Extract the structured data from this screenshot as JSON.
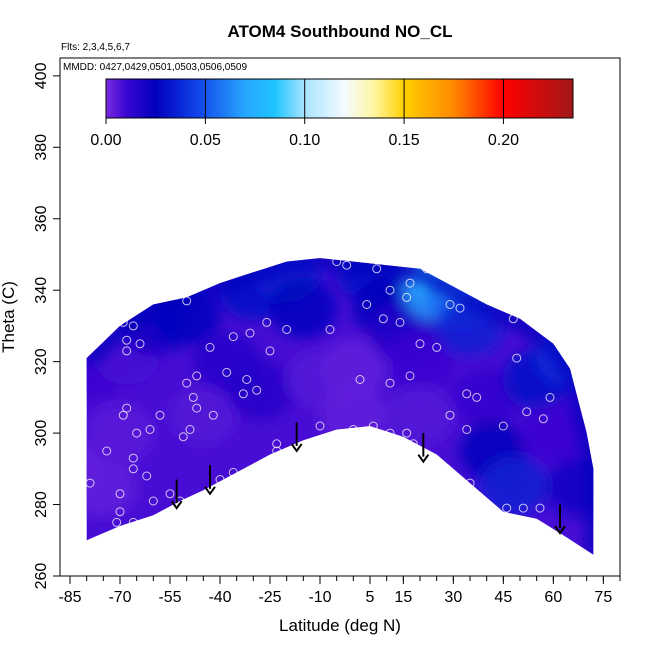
{
  "chart_data": {
    "type": "heatmap",
    "title": "ATOM4 Southbound NO_CL",
    "flights_note": "Flts: 2,3,4,5,6,7",
    "dates_note": "MMDD: 0427,0429,0501,0503,0506,0509",
    "xlabel": "Latitude (deg N)",
    "ylabel": "Theta (C)",
    "xlim": [
      -88,
      80
    ],
    "ylim": [
      260,
      405
    ],
    "x_ticks": [
      -85,
      -70,
      -55,
      -40,
      -25,
      -10,
      5,
      15,
      30,
      45,
      60,
      75
    ],
    "x_minor_ticks": [
      -85,
      -80,
      -75,
      -70,
      -65,
      -60,
      -55,
      -50,
      -45,
      -40,
      -35,
      -30,
      -25,
      -20,
      -15,
      -10,
      -5,
      0,
      5,
      10,
      15,
      20,
      25,
      30,
      35,
      40,
      45,
      50,
      55,
      60,
      65,
      70,
      75,
      80
    ],
    "y_ticks": [
      260,
      280,
      300,
      320,
      340,
      360,
      380,
      400
    ],
    "colorbar": {
      "range": [
        0,
        0.235
      ],
      "ticks": [
        "0.00",
        "0.05",
        "0.10",
        "0.15",
        "0.20"
      ],
      "tick_values": [
        0,
        0.05,
        0.1,
        0.15,
        0.2
      ],
      "stops": [
        {
          "v": 0.0,
          "color": "#7a2be2"
        },
        {
          "v": 0.01,
          "color": "#3a06d0"
        },
        {
          "v": 0.025,
          "color": "#0000bb"
        },
        {
          "v": 0.045,
          "color": "#1040e8"
        },
        {
          "v": 0.07,
          "color": "#27a6ff"
        },
        {
          "v": 0.085,
          "color": "#1ec4ff"
        },
        {
          "v": 0.1,
          "color": "#a8e4ff"
        },
        {
          "v": 0.12,
          "color": "#f4fbff"
        },
        {
          "v": 0.135,
          "color": "#fff6a0"
        },
        {
          "v": 0.15,
          "color": "#ffd000"
        },
        {
          "v": 0.175,
          "color": "#ff8800"
        },
        {
          "v": 0.2,
          "color": "#ff0000"
        },
        {
          "v": 0.235,
          "color": "#a01818"
        }
      ]
    },
    "domain_top": [
      [
        -80,
        321
      ],
      [
        -70,
        330
      ],
      [
        -60,
        336
      ],
      [
        -50,
        338
      ],
      [
        -40,
        342
      ],
      [
        -30,
        345
      ],
      [
        -20,
        348
      ],
      [
        -10,
        349
      ],
      [
        0,
        348
      ],
      [
        10,
        347
      ],
      [
        20,
        346
      ],
      [
        30,
        341
      ],
      [
        40,
        336
      ],
      [
        50,
        332
      ],
      [
        60,
        325
      ],
      [
        65,
        318
      ],
      [
        70,
        300
      ],
      [
        72,
        290
      ],
      [
        72,
        266
      ]
    ],
    "domain_bottom": [
      [
        -80,
        270
      ],
      [
        -70,
        274
      ],
      [
        -60,
        277
      ],
      [
        -52,
        281
      ],
      [
        -45,
        284
      ],
      [
        -35,
        289
      ],
      [
        -25,
        294
      ],
      [
        -15,
        298
      ],
      [
        -5,
        301
      ],
      [
        5,
        302
      ],
      [
        15,
        299
      ],
      [
        25,
        294
      ],
      [
        35,
        286
      ],
      [
        45,
        278
      ],
      [
        55,
        276
      ],
      [
        62,
        272
      ],
      [
        72,
        266
      ]
    ],
    "value_field": [
      {
        "lat": -85,
        "theta": 290,
        "v": 0.004
      },
      {
        "lat": -75,
        "theta": 285,
        "v": 0.004
      },
      {
        "lat": -70,
        "theta": 300,
        "v": 0.005
      },
      {
        "lat": -78,
        "theta": 318,
        "v": 0.01
      },
      {
        "lat": -68,
        "theta": 322,
        "v": 0.008
      },
      {
        "lat": -60,
        "theta": 330,
        "v": 0.02
      },
      {
        "lat": -50,
        "theta": 333,
        "v": 0.026
      },
      {
        "lat": -45,
        "theta": 305,
        "v": 0.006
      },
      {
        "lat": -38,
        "theta": 320,
        "v": 0.015
      },
      {
        "lat": -30,
        "theta": 340,
        "v": 0.03
      },
      {
        "lat": -20,
        "theta": 345,
        "v": 0.035
      },
      {
        "lat": -15,
        "theta": 335,
        "v": 0.026
      },
      {
        "lat": -28,
        "theta": 312,
        "v": 0.016
      },
      {
        "lat": -10,
        "theta": 315,
        "v": 0.006
      },
      {
        "lat": 0,
        "theta": 318,
        "v": 0.004
      },
      {
        "lat": 5,
        "theta": 345,
        "v": 0.03
      },
      {
        "lat": 10,
        "theta": 335,
        "v": 0.025
      },
      {
        "lat": 15,
        "theta": 328,
        "v": 0.016
      },
      {
        "lat": 20,
        "theta": 320,
        "v": 0.01
      },
      {
        "lat": 25,
        "theta": 340,
        "v": 0.07
      },
      {
        "lat": 28,
        "theta": 345,
        "v": 0.08
      },
      {
        "lat": 32,
        "theta": 338,
        "v": 0.055
      },
      {
        "lat": 35,
        "theta": 330,
        "v": 0.035
      },
      {
        "lat": 40,
        "theta": 310,
        "v": 0.012
      },
      {
        "lat": 42,
        "theta": 295,
        "v": 0.025
      },
      {
        "lat": 48,
        "theta": 285,
        "v": 0.035
      },
      {
        "lat": 55,
        "theta": 315,
        "v": 0.03
      },
      {
        "lat": 60,
        "theta": 300,
        "v": 0.01
      },
      {
        "lat": 65,
        "theta": 322,
        "v": 0.04
      },
      {
        "lat": 68,
        "theta": 285,
        "v": 0.02
      },
      {
        "lat": 0,
        "theta": 305,
        "v": 0.004
      },
      {
        "lat": 20,
        "theta": 305,
        "v": 0.006
      }
    ],
    "samples": [
      [
        -85,
        287
      ],
      [
        -79,
        286
      ],
      [
        -74,
        295
      ],
      [
        -71,
        275
      ],
      [
        -70,
        278
      ],
      [
        -70,
        283
      ],
      [
        -69,
        305
      ],
      [
        -68,
        307
      ],
      [
        -68,
        323
      ],
      [
        -68,
        326
      ],
      [
        -66,
        290
      ],
      [
        -66,
        293
      ],
      [
        -65,
        300
      ],
      [
        -66,
        275
      ],
      [
        -69,
        331
      ],
      [
        -66,
        330
      ],
      [
        -64,
        325
      ],
      [
        -62,
        288
      ],
      [
        -61,
        301
      ],
      [
        -60,
        281
      ],
      [
        -58,
        305
      ],
      [
        -55,
        283
      ],
      [
        -52,
        281
      ],
      [
        -51,
        299
      ],
      [
        -50,
        314
      ],
      [
        -50,
        337
      ],
      [
        -49,
        301
      ],
      [
        -48,
        310
      ],
      [
        -47,
        307
      ],
      [
        -47,
        316
      ],
      [
        -43,
        324
      ],
      [
        -42,
        305
      ],
      [
        -40,
        287
      ],
      [
        -38,
        317
      ],
      [
        -36,
        327
      ],
      [
        -36,
        289
      ],
      [
        -33,
        311
      ],
      [
        -32,
        315
      ],
      [
        -31,
        328
      ],
      [
        -29,
        312
      ],
      [
        -26,
        331
      ],
      [
        -25,
        323
      ],
      [
        -23,
        295
      ],
      [
        -23,
        297
      ],
      [
        -20,
        329
      ],
      [
        -10,
        302
      ],
      [
        -7,
        329
      ],
      [
        -5,
        348
      ],
      [
        -2,
        347
      ],
      [
        0,
        301
      ],
      [
        2,
        315
      ],
      [
        4,
        336
      ],
      [
        6,
        302
      ],
      [
        7,
        346
      ],
      [
        9,
        332
      ],
      [
        11,
        314
      ],
      [
        11,
        300
      ],
      [
        11,
        340
      ],
      [
        14,
        331
      ],
      [
        16,
        338
      ],
      [
        16,
        300
      ],
      [
        17,
        342
      ],
      [
        17,
        316
      ],
      [
        18,
        297
      ],
      [
        20,
        325
      ],
      [
        22,
        346
      ],
      [
        25,
        324
      ],
      [
        28,
        290
      ],
      [
        29,
        305
      ],
      [
        29,
        336
      ],
      [
        32,
        335
      ],
      [
        34,
        311
      ],
      [
        34,
        301
      ],
      [
        35,
        286
      ],
      [
        37,
        310
      ],
      [
        45,
        302
      ],
      [
        46,
        279
      ],
      [
        48,
        332
      ],
      [
        49,
        321
      ],
      [
        51,
        279
      ],
      [
        52,
        306
      ],
      [
        56,
        279
      ],
      [
        57,
        304
      ],
      [
        59,
        310
      ],
      [
        62,
        328
      ]
    ],
    "arrows": [
      {
        "lat": -53,
        "theta_top": 287,
        "theta_tip": 279
      },
      {
        "lat": -43,
        "theta_top": 291,
        "theta_tip": 283
      },
      {
        "lat": -17,
        "theta_top": 303,
        "theta_tip": 295
      },
      {
        "lat": 21,
        "theta_top": 300,
        "theta_tip": 292
      },
      {
        "lat": 62,
        "theta_top": 280,
        "theta_tip": 272
      }
    ]
  }
}
